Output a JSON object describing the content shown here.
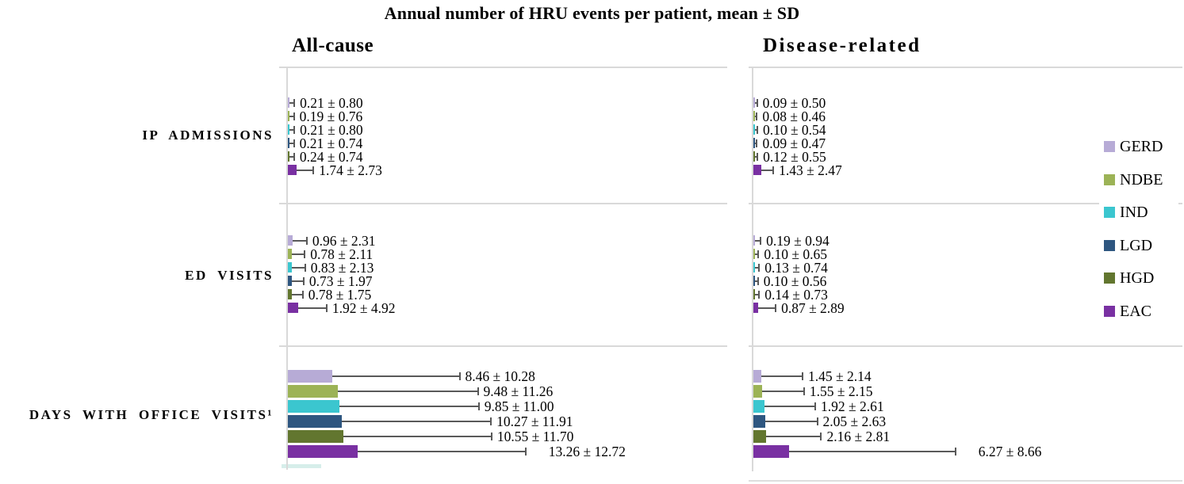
{
  "chart_data": {
    "type": "bar",
    "orientation": "horizontal",
    "title": "Annual number of HRU events per patient, mean ± SD",
    "categories": [
      "IP ADMISSIONS",
      "ED VISITS",
      "DAYS WITH OFFICE VISITS¹"
    ],
    "legend_position": "right",
    "grid": "section-dividers-only",
    "series_order": [
      "GERD",
      "NDBE",
      "IND",
      "LGD",
      "HGD",
      "EAC"
    ],
    "series_colors": {
      "GERD": "#b7abd6",
      "NDBE": "#9cb356",
      "IND": "#3bc6cf",
      "LGD": "#2e5680",
      "HGD": "#62762f",
      "EAC": "#7930a2"
    },
    "error_bar_color": "#595959",
    "axis_line_color": "#d9d9d9",
    "legend": [
      "GERD",
      "NDBE",
      "IND",
      "LGD",
      "HGD",
      "EAC"
    ],
    "panels": [
      {
        "label": "All-cause",
        "groups": [
          {
            "category": "IP ADMISSIONS",
            "bars": [
              {
                "series": "GERD",
                "mean": 0.21,
                "sd": 0.8,
                "label": "0.21 ± 0.80"
              },
              {
                "series": "NDBE",
                "mean": 0.19,
                "sd": 0.76,
                "label": "0.19 ± 0.76"
              },
              {
                "series": "IND",
                "mean": 0.21,
                "sd": 0.8,
                "label": "0.21 ± 0.80"
              },
              {
                "series": "LGD",
                "mean": 0.21,
                "sd": 0.74,
                "label": "0.21 ± 0.74"
              },
              {
                "series": "HGD",
                "mean": 0.24,
                "sd": 0.74,
                "label": "0.24 ± 0.74"
              },
              {
                "series": "EAC",
                "mean": 1.74,
                "sd": 2.73,
                "label": "1.74 ± 2.73"
              }
            ]
          },
          {
            "category": "ED VISITS",
            "bars": [
              {
                "series": "GERD",
                "mean": 0.96,
                "sd": 2.31,
                "label": "0.96 ± 2.31"
              },
              {
                "series": "NDBE",
                "mean": 0.78,
                "sd": 2.11,
                "label": "0.78 ± 2.11"
              },
              {
                "series": "IND",
                "mean": 0.83,
                "sd": 2.13,
                "label": "0.83 ± 2.13"
              },
              {
                "series": "LGD",
                "mean": 0.73,
                "sd": 1.97,
                "label": "0.73 ± 1.97"
              },
              {
                "series": "HGD",
                "mean": 0.78,
                "sd": 1.75,
                "label": "0.78 ± 1.75"
              },
              {
                "series": "EAC",
                "mean": 1.92,
                "sd": 4.92,
                "label": "1.92 ± 4.92"
              }
            ]
          },
          {
            "category": "DAYS WITH OFFICE VISITS¹",
            "bars": [
              {
                "series": "GERD",
                "mean": 8.46,
                "sd": 10.28,
                "label": "8.46 ± 10.28"
              },
              {
                "series": "NDBE",
                "mean": 9.48,
                "sd": 11.26,
                "label": "9.48 ± 11.26"
              },
              {
                "series": "IND",
                "mean": 9.85,
                "sd": 11.0,
                "label": "9.85 ± 11.00"
              },
              {
                "series": "LGD",
                "mean": 10.27,
                "sd": 11.91,
                "label": "10.27 ± 11.91"
              },
              {
                "series": "HGD",
                "mean": 10.55,
                "sd": 11.7,
                "label": "10.55 ± 11.70"
              },
              {
                "series": "EAC",
                "mean": 13.26,
                "sd": 12.72,
                "label": "13.26 ± 12.72"
              }
            ]
          }
        ]
      },
      {
        "label": "Disease-related",
        "groups": [
          {
            "category": "IP ADMISSIONS",
            "bars": [
              {
                "series": "GERD",
                "mean": 0.09,
                "sd": 0.5,
                "label": "0.09 ± 0.50"
              },
              {
                "series": "NDBE",
                "mean": 0.08,
                "sd": 0.46,
                "label": "0.08 ± 0.46"
              },
              {
                "series": "IND",
                "mean": 0.1,
                "sd": 0.54,
                "label": "0.10 ± 0.54"
              },
              {
                "series": "LGD",
                "mean": 0.09,
                "sd": 0.47,
                "label": "0.09 ± 0.47"
              },
              {
                "series": "HGD",
                "mean": 0.12,
                "sd": 0.55,
                "label": "0.12 ± 0.55"
              },
              {
                "series": "EAC",
                "mean": 1.43,
                "sd": 2.47,
                "label": "1.43 ± 2.47"
              }
            ]
          },
          {
            "category": "ED VISITS",
            "bars": [
              {
                "series": "GERD",
                "mean": 0.19,
                "sd": 0.94,
                "label": "0.19 ±  0.94"
              },
              {
                "series": "NDBE",
                "mean": 0.1,
                "sd": 0.65,
                "label": "0.10 ± 0.65"
              },
              {
                "series": "IND",
                "mean": 0.13,
                "sd": 0.74,
                "label": "0.13 ± 0.74"
              },
              {
                "series": "LGD",
                "mean": 0.1,
                "sd": 0.56,
                "label": "0.10 ± 0.56"
              },
              {
                "series": "HGD",
                "mean": 0.14,
                "sd": 0.73,
                "label": "0.14 ± 0.73"
              },
              {
                "series": "EAC",
                "mean": 0.87,
                "sd": 2.89,
                "label": "0.87 ± 2.89"
              }
            ]
          },
          {
            "category": "DAYS WITH OFFICE VISITS¹",
            "bars": [
              {
                "series": "GERD",
                "mean": 1.45,
                "sd": 2.14,
                "label": "1.45 ± 2.14"
              },
              {
                "series": "NDBE",
                "mean": 1.55,
                "sd": 2.15,
                "label": "1.55 ± 2.15"
              },
              {
                "series": "IND",
                "mean": 1.92,
                "sd": 2.61,
                "label": "1.92 ± 2.61"
              },
              {
                "series": "LGD",
                "mean": 2.05,
                "sd": 2.63,
                "label": "2.05 ± 2.63"
              },
              {
                "series": "HGD",
                "mean": 2.16,
                "sd": 2.81,
                "label": "2.16 ± 2.81"
              },
              {
                "series": "EAC",
                "mean": 6.27,
                "sd": 8.66,
                "label": "6.27 ± 8.66"
              }
            ]
          }
        ]
      }
    ]
  }
}
